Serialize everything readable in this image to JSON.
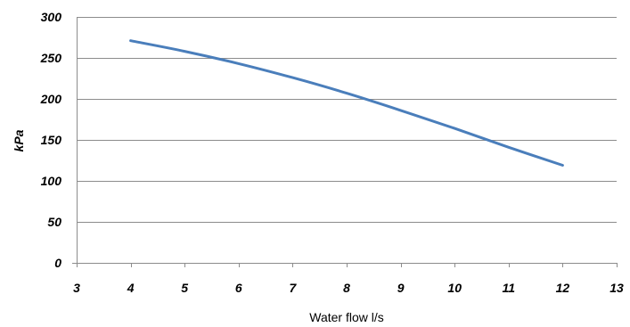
{
  "chart_data": {
    "type": "line",
    "title": "",
    "xlabel": "Water flow l/s",
    "ylabel": "kPa",
    "xlim": [
      3,
      13
    ],
    "ylim": [
      0,
      300
    ],
    "xticks": [
      3,
      4,
      5,
      6,
      7,
      8,
      9,
      10,
      11,
      12,
      13
    ],
    "yticks": [
      0,
      50,
      100,
      150,
      200,
      250,
      300
    ],
    "grid": "horizontal",
    "legend": "none",
    "series": [
      {
        "color": "#4a7ebb",
        "x": [
          4,
          5,
          6,
          7,
          8,
          9,
          10,
          11,
          12
        ],
        "y": [
          271,
          258,
          243,
          226,
          207,
          186,
          164,
          141,
          119
        ]
      }
    ]
  }
}
